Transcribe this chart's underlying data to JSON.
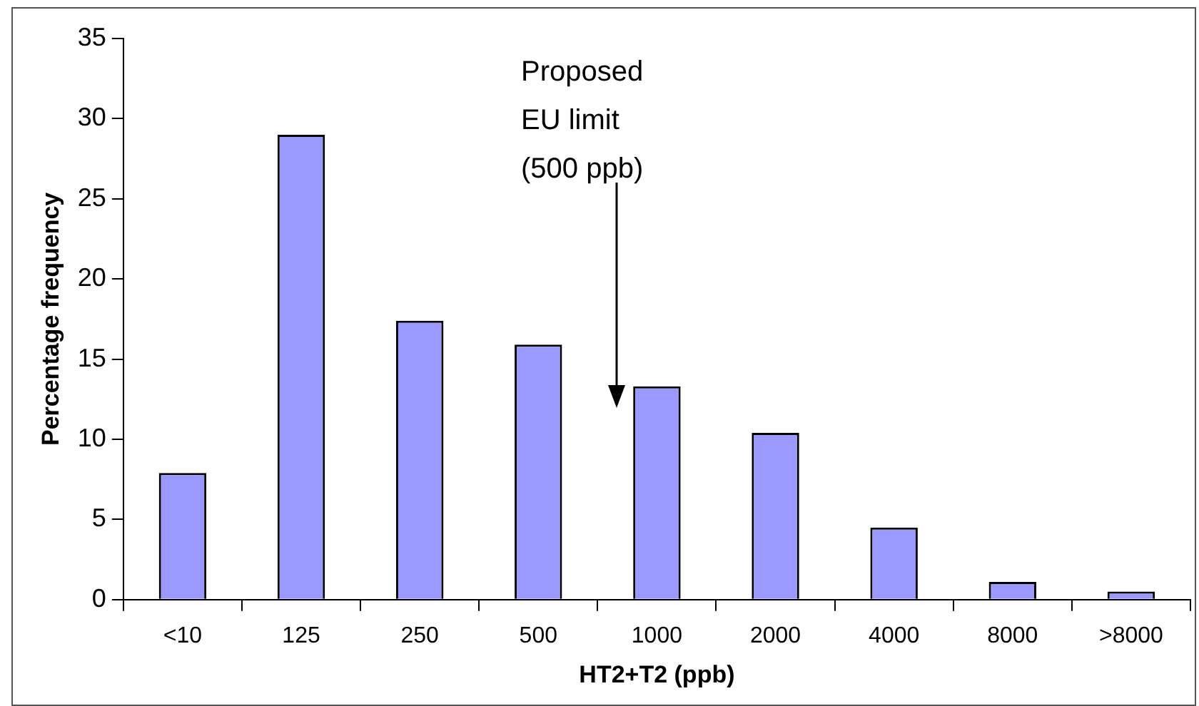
{
  "chart_data": {
    "type": "bar",
    "xlabel": "HT2+T2 (ppb)",
    "ylabel": "Percentage frequency",
    "categories": [
      "<10",
      "125",
      "250",
      "500",
      "1000",
      "2000",
      "4000",
      "8000",
      ">8000"
    ],
    "values": [
      7.9,
      29.0,
      17.4,
      15.9,
      13.3,
      10.4,
      4.5,
      1.1,
      0.5
    ],
    "color": "#9999ff",
    "ylim": [
      0,
      35
    ],
    "yticks": [
      0,
      5,
      10,
      15,
      20,
      25,
      30,
      35
    ],
    "grid": false,
    "legend": false,
    "annotations": [
      "Proposed\nEU limit\n(500 ppb)"
    ]
  }
}
